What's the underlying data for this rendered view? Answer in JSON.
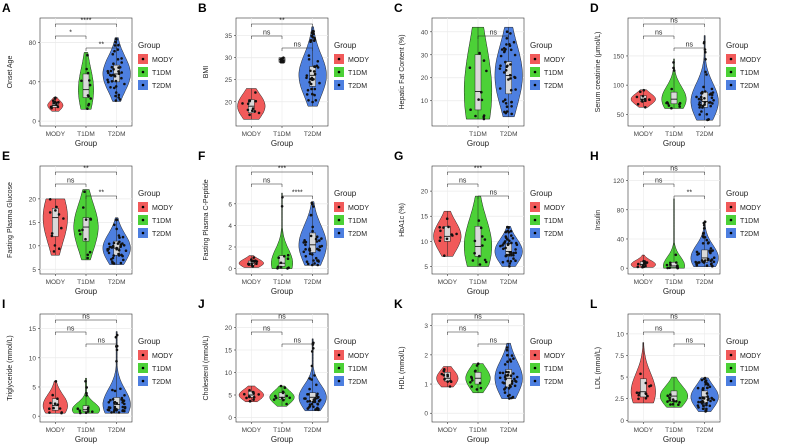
{
  "figure": {
    "legend_title": "Group",
    "groups": [
      "MODY",
      "T1DM",
      "T2DM"
    ],
    "colors": {
      "MODY": "#f15a5a",
      "T1DM": "#4cd137",
      "T2DM": "#4d7fe0"
    },
    "xlabel": "Group",
    "point_color": "#111111",
    "box_fill": "#d9d9d9",
    "grid_color": "#ebebeb"
  },
  "chart_data": [
    {
      "type": "violin",
      "letter": "A",
      "ylabel": "Onset Age",
      "yticks": [
        0,
        40,
        80
      ],
      "ylim": [
        -5,
        105
      ],
      "comparisons": [
        {
          "pair": [
            "MODY",
            "T1DM"
          ],
          "label": "*"
        },
        {
          "pair": [
            "MODY",
            "T2DM"
          ],
          "label": "****"
        },
        {
          "pair": [
            "T1DM",
            "T2DM"
          ],
          "label": "**"
        }
      ],
      "groups": {
        "MODY": {
          "min": 10,
          "q1": 14,
          "median": 16,
          "q3": 19,
          "max": 24,
          "spread": 0.25
        },
        "T1DM": {
          "min": 12,
          "q1": 24,
          "median": 32,
          "q3": 48,
          "max": 70,
          "spread": 0.25
        },
        "T2DM": {
          "min": 20,
          "q1": 40,
          "median": 48,
          "q3": 57,
          "max": 85,
          "spread": 0.45
        }
      }
    },
    {
      "type": "violin",
      "letter": "B",
      "ylabel": "BMI",
      "yticks": [
        20,
        25,
        30,
        35
      ],
      "ylim": [
        14.5,
        39
      ],
      "comparisons": [
        {
          "pair": [
            "MODY",
            "T1DM"
          ],
          "label": "ns"
        },
        {
          "pair": [
            "MODY",
            "T2DM"
          ],
          "label": "**"
        },
        {
          "pair": [
            "T1DM",
            "T2DM"
          ],
          "label": "ns"
        }
      ],
      "groups": {
        "MODY": {
          "min": 16,
          "q1": 17.5,
          "median": 19,
          "q3": 20.5,
          "max": 23,
          "spread": 0.45
        },
        "T1DM": {
          "min": 29,
          "q1": 29,
          "median": 29.5,
          "q3": 30,
          "max": 30,
          "spread": 0.05
        },
        "T2DM": {
          "min": 19,
          "q1": 23.5,
          "median": 26,
          "q3": 28,
          "max": 37,
          "spread": 0.45
        }
      }
    },
    {
      "type": "violin",
      "letter": "C",
      "ylabel": "Hepatic Fat Content (%)",
      "yticks": [
        10,
        20,
        30,
        40
      ],
      "ylim": [
        -1,
        46
      ],
      "comparisons": [
        {
          "pair": [
            "T1DM",
            "T2DM"
          ],
          "label": "ns"
        }
      ],
      "groups": {
        "T1DM": {
          "min": 2,
          "q1": 6,
          "median": 14,
          "q3": 30,
          "max": 42,
          "spread": 0.45
        },
        "T2DM": {
          "min": 3,
          "q1": 13,
          "median": 21,
          "q3": 27,
          "max": 42,
          "spread": 0.45
        }
      }
    },
    {
      "type": "violin",
      "letter": "D",
      "ylabel": "Serum creatinine (μmol/L)",
      "yticks": [
        50,
        100,
        150
      ],
      "ylim": [
        30,
        215
      ],
      "comparisons": [
        {
          "pair": [
            "MODY",
            "T1DM"
          ],
          "label": "ns"
        },
        {
          "pair": [
            "MODY",
            "T2DM"
          ],
          "label": "ns"
        },
        {
          "pair": [
            "T1DM",
            "T2DM"
          ],
          "label": "ns"
        }
      ],
      "groups": {
        "MODY": {
          "min": 62,
          "q1": 72,
          "median": 76,
          "q3": 82,
          "max": 92,
          "spread": 0.4
        },
        "T1DM": {
          "min": 60,
          "q1": 68,
          "median": 76,
          "q3": 88,
          "max": 145,
          "spread": 0.4
        },
        "T2DM": {
          "min": 40,
          "q1": 62,
          "median": 72,
          "q3": 88,
          "max": 185,
          "spread": 0.45
        }
      }
    },
    {
      "type": "violin",
      "letter": "E",
      "ylabel": "Fasting Plasma Glucose",
      "yticks": [
        5,
        10,
        15,
        20
      ],
      "ylim": [
        4,
        27
      ],
      "comparisons": [
        {
          "pair": [
            "MODY",
            "T1DM"
          ],
          "label": "ns"
        },
        {
          "pair": [
            "MODY",
            "T2DM"
          ],
          "label": "**"
        },
        {
          "pair": [
            "T1DM",
            "T2DM"
          ],
          "label": "**"
        }
      ],
      "groups": {
        "MODY": {
          "min": 8,
          "q1": 12,
          "median": 16,
          "q3": 18,
          "max": 20,
          "spread": 0.4
        },
        "T1DM": {
          "min": 7,
          "q1": 11,
          "median": 14,
          "q3": 16,
          "max": 22,
          "spread": 0.4
        },
        "T2DM": {
          "min": 6,
          "q1": 8,
          "median": 9.5,
          "q3": 11,
          "max": 16,
          "spread": 0.45
        }
      }
    },
    {
      "type": "violin",
      "letter": "F",
      "ylabel": "Fasting Plasma C-Peptide",
      "yticks": [
        0,
        2,
        4,
        6
      ],
      "ylim": [
        -0.5,
        9.5
      ],
      "comparisons": [
        {
          "pair": [
            "MODY",
            "T1DM"
          ],
          "label": "ns"
        },
        {
          "pair": [
            "MODY",
            "T2DM"
          ],
          "label": "***"
        },
        {
          "pair": [
            "T1DM",
            "T2DM"
          ],
          "label": "****"
        }
      ],
      "groups": {
        "MODY": {
          "min": 0.1,
          "q1": 0.3,
          "median": 0.5,
          "q3": 0.7,
          "max": 1.2,
          "spread": 0.4
        },
        "T1DM": {
          "min": 0,
          "q1": 0.2,
          "median": 0.5,
          "q3": 1.2,
          "max": 7,
          "spread": 0.35
        },
        "T2DM": {
          "min": 0.3,
          "q1": 1.5,
          "median": 2.2,
          "q3": 3.3,
          "max": 6.2,
          "spread": 0.45
        }
      }
    },
    {
      "type": "violin",
      "letter": "G",
      "ylabel": "HbA1c (%)",
      "yticks": [
        5,
        10,
        15,
        20
      ],
      "ylim": [
        3.5,
        25
      ],
      "comparisons": [
        {
          "pair": [
            "MODY",
            "T1DM"
          ],
          "label": "ns"
        },
        {
          "pair": [
            "MODY",
            "T2DM"
          ],
          "label": "***"
        },
        {
          "pair": [
            "T1DM",
            "T2DM"
          ],
          "label": "ns"
        }
      ],
      "groups": {
        "MODY": {
          "min": 7,
          "q1": 10,
          "median": 11,
          "q3": 13,
          "max": 16,
          "spread": 0.45
        },
        "T1DM": {
          "min": 5,
          "q1": 7,
          "median": 9,
          "q3": 13,
          "max": 19,
          "spread": 0.45
        },
        "T2DM": {
          "min": 5,
          "q1": 7,
          "median": 8,
          "q3": 9.5,
          "max": 13,
          "spread": 0.45
        }
      }
    },
    {
      "type": "violin",
      "letter": "H",
      "ylabel": "Insulin",
      "yticks": [
        0,
        40,
        80,
        120
      ],
      "ylim": [
        -8,
        140
      ],
      "comparisons": [
        {
          "pair": [
            "MODY",
            "T1DM"
          ],
          "label": "ns"
        },
        {
          "pair": [
            "MODY",
            "T2DM"
          ],
          "label": "ns"
        },
        {
          "pair": [
            "T1DM",
            "T2DM"
          ],
          "label": "**"
        }
      ],
      "groups": {
        "MODY": {
          "min": 1,
          "q1": 3,
          "median": 5,
          "q3": 9,
          "max": 18,
          "spread": 0.4
        },
        "T1DM": {
          "min": 0,
          "q1": 1,
          "median": 3,
          "q3": 8,
          "max": 95,
          "spread": 0.35
        },
        "T2DM": {
          "min": 2,
          "q1": 8,
          "median": 14,
          "q3": 25,
          "max": 65,
          "spread": 0.45
        }
      }
    },
    {
      "type": "violin",
      "letter": "I",
      "ylabel": "Triglyceride (mmol/L)",
      "yticks": [
        0,
        5,
        10,
        15
      ],
      "ylim": [
        -1,
        17.5
      ],
      "comparisons": [
        {
          "pair": [
            "MODY",
            "T1DM"
          ],
          "label": "ns"
        },
        {
          "pair": [
            "MODY",
            "T2DM"
          ],
          "label": "ns"
        },
        {
          "pair": [
            "T1DM",
            "T2DM"
          ],
          "label": "ns"
        }
      ],
      "groups": {
        "MODY": {
          "min": 0.5,
          "q1": 1,
          "median": 1.8,
          "q3": 3,
          "max": 6,
          "spread": 0.4
        },
        "T1DM": {
          "min": 0.5,
          "q1": 0.8,
          "median": 1.1,
          "q3": 1.8,
          "max": 6.5,
          "spread": 0.45
        },
        "T2DM": {
          "min": 0.5,
          "q1": 1.2,
          "median": 2,
          "q3": 3.2,
          "max": 14.5,
          "spread": 0.45
        }
      }
    },
    {
      "type": "violin",
      "letter": "J",
      "ylabel": "Cholesterol (mmol/L)",
      "yticks": [
        0,
        5,
        10,
        15,
        20
      ],
      "ylim": [
        -1,
        23
      ],
      "comparisons": [
        {
          "pair": [
            "MODY",
            "T1DM"
          ],
          "label": "ns"
        },
        {
          "pair": [
            "MODY",
            "T2DM"
          ],
          "label": "ns"
        },
        {
          "pair": [
            "T1DM",
            "T2DM"
          ],
          "label": "ns"
        }
      ],
      "groups": {
        "MODY": {
          "min": 3.5,
          "q1": 4.5,
          "median": 5,
          "q3": 5.8,
          "max": 7,
          "spread": 0.4
        },
        "T1DM": {
          "min": 2.5,
          "q1": 4,
          "median": 4.5,
          "q3": 5.5,
          "max": 7,
          "spread": 0.4
        },
        "T2DM": {
          "min": 1.5,
          "q1": 3.5,
          "median": 4.5,
          "q3": 5.5,
          "max": 17.5,
          "spread": 0.45
        }
      }
    },
    {
      "type": "violin",
      "letter": "K",
      "ylabel": "HDL (mmol/L)",
      "yticks": [
        0,
        1,
        2,
        3
      ],
      "ylim": [
        -0.3,
        3.4
      ],
      "comparisons": [
        {
          "pair": [
            "MODY",
            "T1DM"
          ],
          "label": "ns"
        },
        {
          "pair": [
            "MODY",
            "T2DM"
          ],
          "label": "ns"
        },
        {
          "pair": [
            "T1DM",
            "T2DM"
          ],
          "label": "ns"
        }
      ],
      "groups": {
        "MODY": {
          "min": 0.9,
          "q1": 1.1,
          "median": 1.2,
          "q3": 1.4,
          "max": 1.6,
          "spread": 0.35
        },
        "T1DM": {
          "min": 0.7,
          "q1": 1,
          "median": 1.2,
          "q3": 1.4,
          "max": 1.7,
          "spread": 0.4
        },
        "T2DM": {
          "min": 0.5,
          "q1": 0.9,
          "median": 1.2,
          "q3": 1.5,
          "max": 2.4,
          "spread": 0.45
        }
      }
    },
    {
      "type": "violin",
      "letter": "L",
      "ylabel": "LDL (mmol/L)",
      "yticks": [
        0,
        2.5,
        5,
        7.5,
        10
      ],
      "ylim": [
        -0.2,
        12.3
      ],
      "comparisons": [
        {
          "pair": [
            "MODY",
            "T1DM"
          ],
          "label": "ns"
        },
        {
          "pair": [
            "MODY",
            "T2DM"
          ],
          "label": "ns"
        },
        {
          "pair": [
            "T1DM",
            "T2DM"
          ],
          "label": "ns"
        }
      ],
      "groups": {
        "MODY": {
          "min": 2,
          "q1": 2.7,
          "median": 3.3,
          "q3": 4.8,
          "max": 9,
          "spread": 0.4
        },
        "T1DM": {
          "min": 1.5,
          "q1": 2.2,
          "median": 2.8,
          "q3": 3.4,
          "max": 5,
          "spread": 0.45
        },
        "T2DM": {
          "min": 1,
          "q1": 2,
          "median": 2.7,
          "q3": 3.4,
          "max": 4.9,
          "spread": 0.45
        }
      }
    }
  ]
}
